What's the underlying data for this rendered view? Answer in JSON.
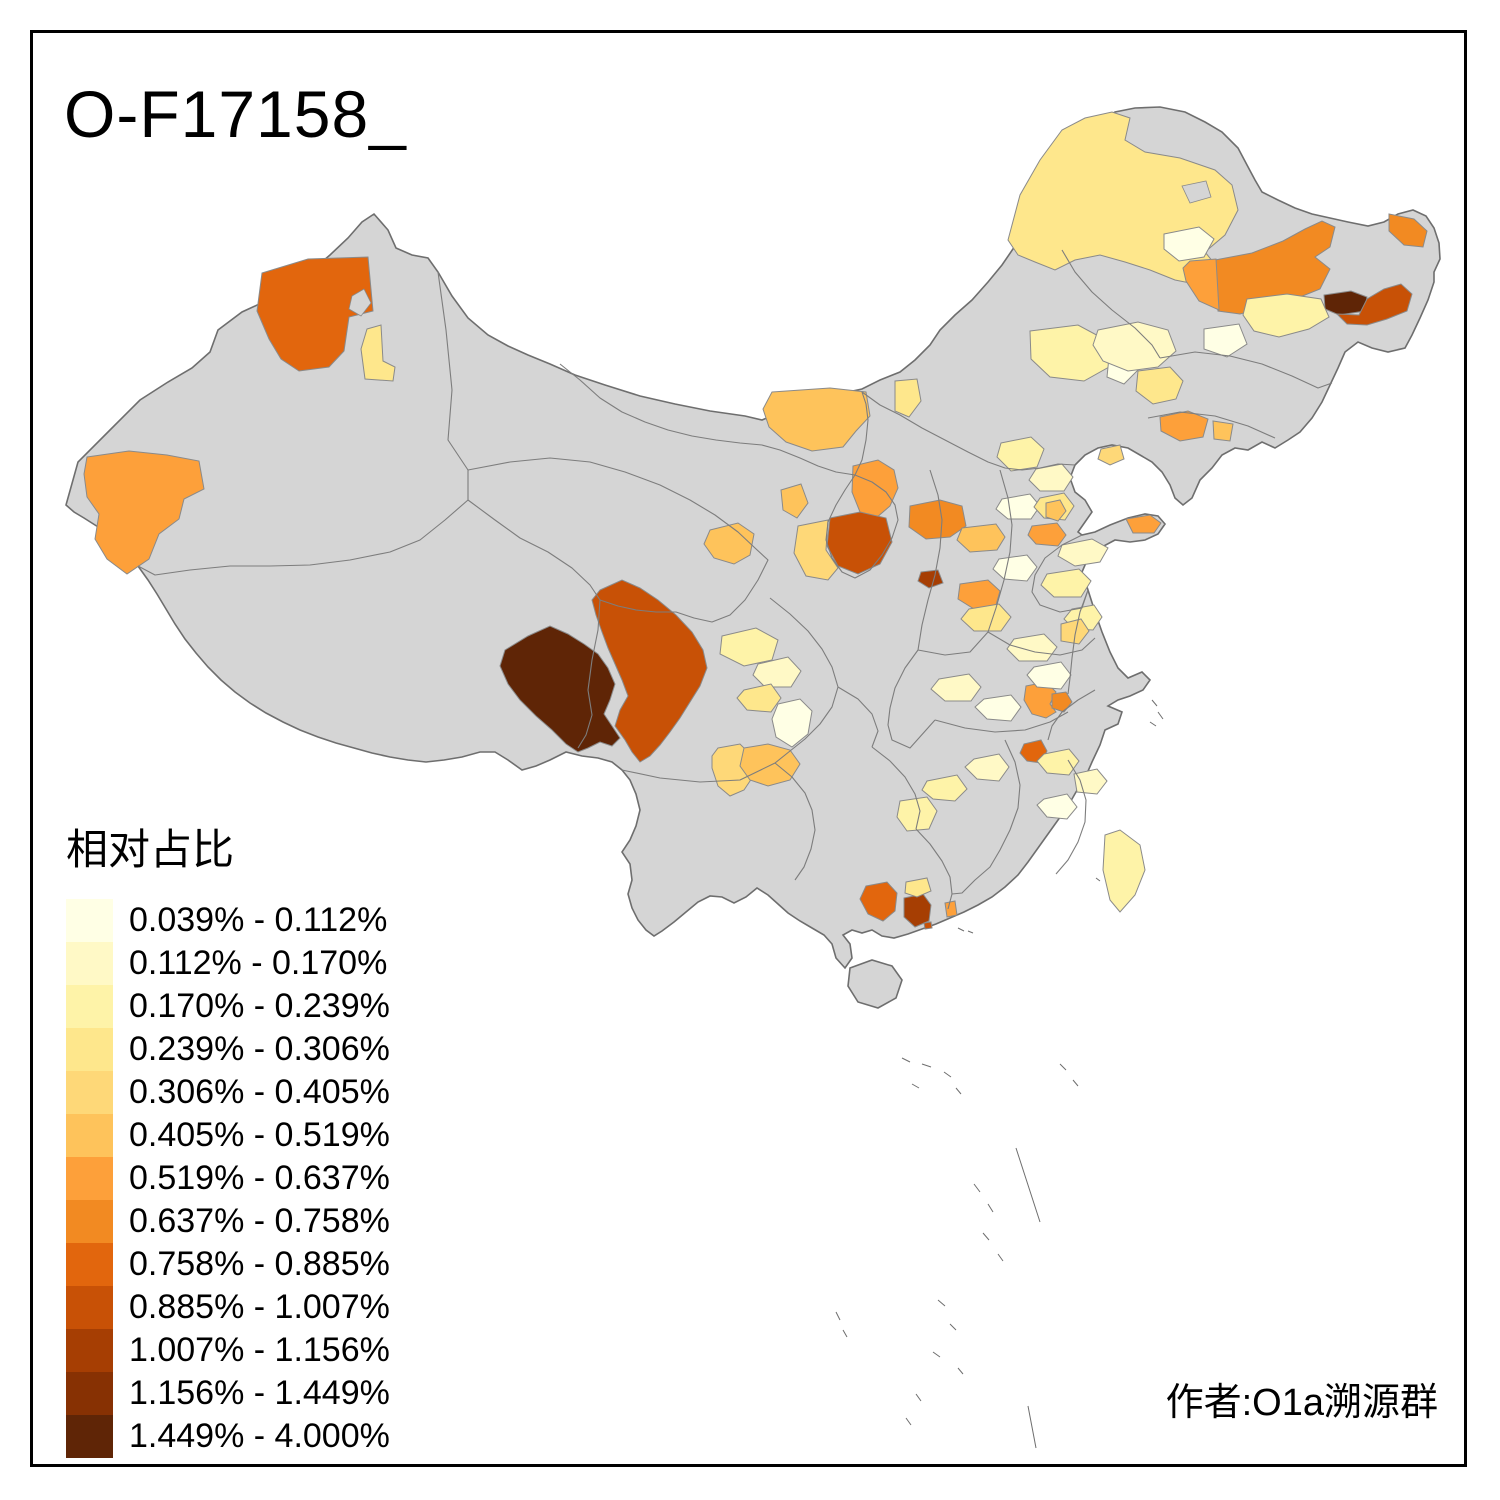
{
  "title": "O-F17158_",
  "legend": {
    "title": "相对占比",
    "items": [
      {
        "range": "0.039% - 0.112%",
        "color": "#FFFFE5"
      },
      {
        "range": "0.112% - 0.170%",
        "color": "#FFF9C6"
      },
      {
        "range": "0.170% - 0.239%",
        "color": "#FEF3A8"
      },
      {
        "range": "0.239% - 0.306%",
        "color": "#FEE78C"
      },
      {
        "range": "0.306% - 0.405%",
        "color": "#FED878"
      },
      {
        "range": "0.405% - 0.519%",
        "color": "#FEC35B"
      },
      {
        "range": "0.519% - 0.637%",
        "color": "#FDA03A"
      },
      {
        "range": "0.637% - 0.758%",
        "color": "#F28A22"
      },
      {
        "range": "0.758% - 0.885%",
        "color": "#E2660D"
      },
      {
        "range": "0.885% - 1.007%",
        "color": "#C85106"
      },
      {
        "range": "1.007% - 1.156%",
        "color": "#A63E03"
      },
      {
        "range": "1.156% - 1.449%",
        "color": "#873103"
      },
      {
        "range": "1.449% - 4.000%",
        "color": "#5F2506"
      }
    ]
  },
  "attribution": "作者:O1a溯源群",
  "map": {
    "colors": {
      "no_data": "#D5D5D5",
      "border": "#7D7D7D",
      "nation_border": "#6E6E6E",
      "background": "#FFFFFF",
      "frame": "#000000"
    },
    "regions": [
      {
        "id": "r01",
        "bin": 9
      },
      {
        "id": "r02",
        "bin": 4
      },
      {
        "id": "r03",
        "bin": 7
      },
      {
        "id": "r04",
        "bin": 6
      },
      {
        "id": "r05",
        "bin": 4
      },
      {
        "id": "r06",
        "bin": 3
      },
      {
        "id": "r07",
        "bin": 1
      },
      {
        "id": "r08",
        "bin": 4
      },
      {
        "id": "r09",
        "bin": 8
      },
      {
        "id": "r10",
        "bin": 7
      },
      {
        "id": "r11",
        "bin": 13
      },
      {
        "id": "r12",
        "bin": 10
      },
      {
        "id": "r13",
        "bin": 8
      },
      {
        "id": "r14",
        "bin": 3
      },
      {
        "id": "r15",
        "bin": 1
      },
      {
        "id": "r16",
        "bin": 1
      },
      {
        "id": "r17",
        "bin": 2
      },
      {
        "id": "r18",
        "bin": 4
      },
      {
        "id": "r19",
        "bin": 7
      },
      {
        "id": "r20",
        "bin": 6
      },
      {
        "id": "r21",
        "bin": 7
      },
      {
        "id": "r22",
        "bin": 10
      },
      {
        "id": "r23",
        "bin": 5
      },
      {
        "id": "r24",
        "bin": 8
      },
      {
        "id": "r25",
        "bin": 11
      },
      {
        "id": "r26",
        "bin": 7
      },
      {
        "id": "r27",
        "bin": 7
      },
      {
        "id": "r28",
        "bin": 7
      },
      {
        "id": "r29",
        "bin": 5
      },
      {
        "id": "r30",
        "bin": 6
      },
      {
        "id": "r31",
        "bin": 6
      },
      {
        "id": "r33",
        "bin": 13
      },
      {
        "id": "r34",
        "bin": 10
      },
      {
        "id": "r35",
        "bin": 5
      },
      {
        "id": "r36",
        "bin": 6
      },
      {
        "id": "r37",
        "bin": 3
      },
      {
        "id": "r38",
        "bin": 2
      },
      {
        "id": "r39",
        "bin": 4
      },
      {
        "id": "r40",
        "bin": 1
      },
      {
        "id": "r41",
        "bin": 7
      },
      {
        "id": "r42",
        "bin": 8
      },
      {
        "id": "r43",
        "bin": 9
      },
      {
        "id": "r44",
        "bin": 9
      },
      {
        "id": "r45",
        "bin": 11
      },
      {
        "id": "r46",
        "bin": 7
      },
      {
        "id": "r47",
        "bin": 4
      },
      {
        "id": "r48",
        "bin": 3
      },
      {
        "id": "r49",
        "bin": 3
      },
      {
        "id": "r50",
        "bin": 3
      },
      {
        "id": "r51",
        "bin": 3
      },
      {
        "id": "r52",
        "bin": 2
      },
      {
        "id": "r53",
        "bin": 1
      },
      {
        "id": "r54",
        "bin": 4
      },
      {
        "id": "r55",
        "bin": 2
      },
      {
        "id": "r56",
        "bin": 3
      },
      {
        "id": "r57",
        "bin": 1
      },
      {
        "id": "r58",
        "bin": 4
      },
      {
        "id": "r59",
        "bin": 2
      },
      {
        "id": "r60",
        "bin": 3
      },
      {
        "id": "r61",
        "bin": 5
      },
      {
        "id": "r62",
        "bin": 1
      },
      {
        "id": "r63",
        "bin": 2
      },
      {
        "id": "r64",
        "bin": 1
      },
      {
        "id": "r65",
        "bin": 3
      },
      {
        "id": "r66",
        "bin": 2
      },
      {
        "id": "r67",
        "bin": 1
      },
      {
        "id": "r68",
        "bin": 2
      },
      {
        "id": "r69",
        "bin": 10
      },
      {
        "id": "r70",
        "bin": 6
      },
      {
        "id": "r71",
        "bin": 6
      }
    ]
  }
}
